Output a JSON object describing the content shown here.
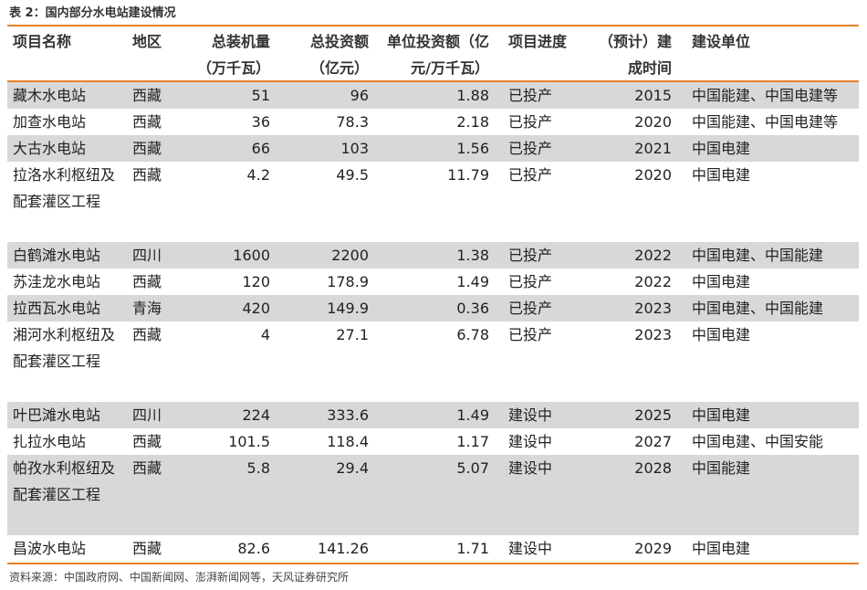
{
  "caption": "表 2：国内部分水电站建设情况",
  "headers": {
    "name": "项目名称",
    "region": "地区",
    "capacity_1": "总装机量",
    "capacity_2": "（万千瓦）",
    "investment_1": "总投资额",
    "investment_2": "（亿元）",
    "unit_1": "单位投资额（亿",
    "unit_2": "元/万千瓦）",
    "progress": "项目进度",
    "year_1": "（预计）建",
    "year_2": "成时间",
    "org": "建设单位"
  },
  "rows": [
    {
      "name": "藏木水电站",
      "region": "西藏",
      "capacity": "51",
      "investment": "96",
      "unit_investment": "1.88",
      "progress": "已投产",
      "year": "2015",
      "org": "中国能建、中国电建等"
    },
    {
      "name": "加查水电站",
      "region": "西藏",
      "capacity": "36",
      "investment": "78.3",
      "unit_investment": "2.18",
      "progress": "已投产",
      "year": "2020",
      "org": "中国能建、中国电建等"
    },
    {
      "name": "大古水电站",
      "region": "西藏",
      "capacity": "66",
      "investment": "103",
      "unit_investment": "1.56",
      "progress": "已投产",
      "year": "2021",
      "org": "中国电建"
    },
    {
      "name": "拉洛水利枢纽及配套灌区工程",
      "region": "西藏",
      "capacity": "4.2",
      "investment": "49.5",
      "unit_investment": "11.79",
      "progress": "已投产",
      "year": "2020",
      "org": "中国电建"
    },
    {
      "name": "白鹤滩水电站",
      "region": "四川",
      "capacity": "1600",
      "investment": "2200",
      "unit_investment": "1.38",
      "progress": "已投产",
      "year": "2022",
      "org": "中国电建、中国能建"
    },
    {
      "name": "苏洼龙水电站",
      "region": "西藏",
      "capacity": "120",
      "investment": "178.9",
      "unit_investment": "1.49",
      "progress": "已投产",
      "year": "2022",
      "org": "中国电建"
    },
    {
      "name": "拉西瓦水电站",
      "region": "青海",
      "capacity": "420",
      "investment": "149.9",
      "unit_investment": "0.36",
      "progress": "已投产",
      "year": "2023",
      "org": "中国电建、中国能建"
    },
    {
      "name": "湘河水利枢纽及配套灌区工程",
      "region": "西藏",
      "capacity": "4",
      "investment": "27.1",
      "unit_investment": "6.78",
      "progress": "已投产",
      "year": "2023",
      "org": "中国电建"
    },
    {
      "name": "叶巴滩水电站",
      "region": "四川",
      "capacity": "224",
      "investment": "333.6",
      "unit_investment": "1.49",
      "progress": "建设中",
      "year": "2025",
      "org": "中国电建"
    },
    {
      "name": "扎拉水电站",
      "region": "西藏",
      "capacity": "101.5",
      "investment": "118.4",
      "unit_investment": "1.17",
      "progress": "建设中",
      "year": "2027",
      "org": "中国电建、中国安能"
    },
    {
      "name": "帕孜水利枢纽及配套灌区工程",
      "region": "西藏",
      "capacity": "5.8",
      "investment": "29.4",
      "unit_investment": "5.07",
      "progress": "建设中",
      "year": "2028",
      "org": "中国能建"
    },
    {
      "name": "昌波水电站",
      "region": "西藏",
      "capacity": "82.6",
      "investment": "141.26",
      "unit_investment": "1.71",
      "progress": "建设中",
      "year": "2029",
      "org": "中国电建"
    }
  ],
  "source": "资料来源：中国政府网、中国新闻网、澎湃新闻网等，天风证券研究所"
}
